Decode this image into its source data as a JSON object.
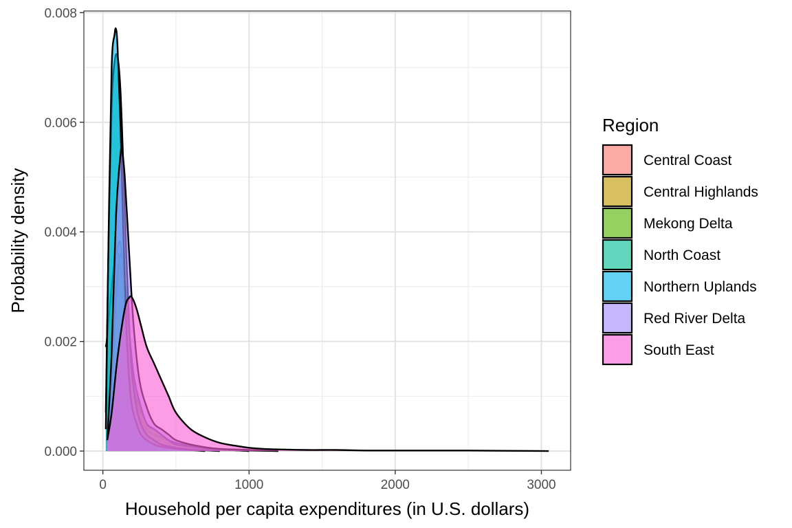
{
  "chart_data": {
    "type": "area",
    "subtype": "density",
    "xlabel": "Household per capita expenditures (in U.S. dollars)",
    "ylabel": "Probability density",
    "xlim": [
      -130,
      3200
    ],
    "ylim": [
      -0.00035,
      0.00803
    ],
    "x_ticks": [
      0,
      1000,
      2000,
      3000
    ],
    "x_tick_labels": [
      "0",
      "1000",
      "2000",
      "3000"
    ],
    "y_ticks": [
      0,
      0.002,
      0.004,
      0.006,
      0.008
    ],
    "y_tick_labels": [
      "0.000",
      "0.002",
      "0.004",
      "0.006",
      "0.008"
    ],
    "grid": true,
    "legend": {
      "title": "Region",
      "position": "right"
    },
    "series": [
      {
        "name": "Central Coast",
        "color": "#F8766D",
        "x": [
          30,
          60,
          90,
          120,
          150,
          180,
          210,
          250,
          300,
          350,
          400,
          450,
          500,
          600,
          700,
          800,
          900,
          1000,
          1200
        ],
        "y": [
          0.0002,
          0.0016,
          0.0034,
          0.0038,
          0.0029,
          0.0019,
          0.0012,
          0.0007,
          0.0004,
          0.0003,
          0.00025,
          0.00018,
          0.00012,
          7e-05,
          4e-05,
          3e-05,
          2e-05,
          1e-05,
          0.0
        ]
      },
      {
        "name": "Central Highlands",
        "color": "#C49A00",
        "x": [
          20,
          30,
          60,
          90,
          120,
          150,
          180,
          210,
          250,
          300,
          350,
          400,
          450,
          500,
          600,
          700,
          800,
          1000
        ],
        "y": [
          0.0019,
          0.0021,
          0.003,
          0.0036,
          0.0034,
          0.0026,
          0.0018,
          0.0012,
          0.0008,
          0.0005,
          0.0004,
          0.0003,
          0.0002,
          0.00015,
          0.0001,
          5e-05,
          3e-05,
          0.0
        ]
      },
      {
        "name": "Mekong Delta",
        "color": "#53B400",
        "x": [
          30,
          60,
          90,
          120,
          150,
          180,
          210,
          250,
          300,
          350,
          400,
          450,
          500,
          600,
          700,
          800,
          1000
        ],
        "y": [
          0.0002,
          0.0012,
          0.0028,
          0.0036,
          0.0031,
          0.0022,
          0.0014,
          0.0009,
          0.0005,
          0.0004,
          0.0003,
          0.0002,
          0.00012,
          8e-05,
          5e-05,
          3e-05,
          0.0
        ]
      },
      {
        "name": "North Coast",
        "color": "#00C094",
        "x": [
          20,
          40,
          60,
          80,
          100,
          120,
          140,
          160,
          180,
          200,
          230,
          260,
          300,
          350,
          400,
          500,
          600,
          800
        ],
        "y": [
          0.0007,
          0.004,
          0.0063,
          0.0071,
          0.0072,
          0.0066,
          0.0052,
          0.0036,
          0.0023,
          0.0014,
          0.0008,
          0.0005,
          0.0003,
          0.0002,
          0.00012,
          6e-05,
          3e-05,
          0.0
        ]
      },
      {
        "name": "Northern Uplands",
        "color": "#00B6EB",
        "x": [
          20,
          40,
          60,
          80,
          90,
          100,
          120,
          140,
          160,
          180,
          200,
          230,
          260,
          300,
          350,
          400,
          500,
          700
        ],
        "y": [
          0.0004,
          0.0041,
          0.007,
          0.0076,
          0.0077,
          0.0074,
          0.006,
          0.004,
          0.0023,
          0.0013,
          0.0008,
          0.0005,
          0.0003,
          0.0002,
          0.00012,
          8e-05,
          4e-05,
          0.0
        ]
      },
      {
        "name": "Red River Delta",
        "color": "#A58AFF",
        "x": [
          30,
          60,
          90,
          120,
          130,
          150,
          180,
          210,
          250,
          300,
          350,
          400,
          450,
          500,
          600,
          700,
          800,
          1000,
          1200
        ],
        "y": [
          0.0002,
          0.0018,
          0.0043,
          0.0054,
          0.0055,
          0.005,
          0.0036,
          0.0023,
          0.0013,
          0.0008,
          0.0005,
          0.0004,
          0.0003,
          0.0002,
          0.00012,
          7e-05,
          4e-05,
          2e-05,
          0.0
        ]
      },
      {
        "name": "South East",
        "color": "#FB61D7",
        "x": [
          30,
          60,
          100,
          150,
          180,
          200,
          230,
          260,
          300,
          350,
          400,
          450,
          500,
          600,
          700,
          800,
          900,
          1000,
          1100,
          1200,
          1400,
          1600,
          1800,
          2000,
          2200,
          2500,
          3050
        ],
        "y": [
          0.0002,
          0.0007,
          0.0017,
          0.0026,
          0.0028,
          0.0028,
          0.0026,
          0.0023,
          0.0019,
          0.0016,
          0.0013,
          0.001,
          0.0007,
          0.0004,
          0.00025,
          0.00015,
          0.0001,
          6e-05,
          4e-05,
          3e-05,
          2e-05,
          2e-05,
          1e-05,
          1e-05,
          1e-05,
          1e-05,
          0.0
        ]
      }
    ]
  }
}
